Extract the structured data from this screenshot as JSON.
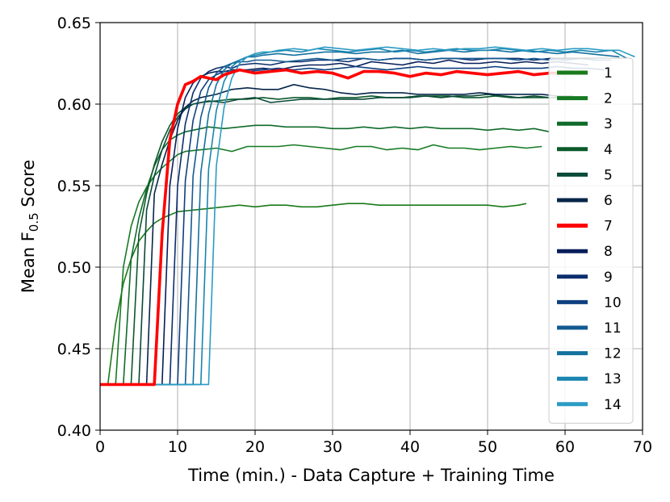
{
  "chart_data": {
    "type": "line",
    "xlabel": "Time (min.) - Data Capture + Training Time",
    "ylabel_main": "Mean F",
    "ylabel_sub": "0.5",
    "ylabel_tail": " Score",
    "xlim": [
      0,
      70
    ],
    "ylim": [
      0.4,
      0.65
    ],
    "xticks": [
      0,
      10,
      20,
      30,
      40,
      50,
      60,
      70
    ],
    "yticks": [
      0.4,
      0.45,
      0.5,
      0.55,
      0.6,
      0.65
    ],
    "xtick_labels": [
      "0",
      "10",
      "20",
      "30",
      "40",
      "50",
      "60",
      "70"
    ],
    "ytick_labels": [
      "0.40",
      "0.45",
      "0.50",
      "0.55",
      "0.60",
      "0.65"
    ],
    "grid": true,
    "legend_position": "right",
    "highlight_series": "7",
    "series": [
      {
        "name": "1",
        "color": "#1a7a1a",
        "x": [
          0,
          1,
          2,
          3,
          4,
          5,
          6,
          7,
          8,
          9,
          10,
          12,
          14,
          16,
          18,
          20,
          22,
          24,
          26,
          28,
          30,
          32,
          34,
          36,
          38,
          40,
          42,
          44,
          46,
          48,
          50,
          52,
          54,
          55
        ],
        "y": [
          0.428,
          0.428,
          0.465,
          0.49,
          0.505,
          0.516,
          0.522,
          0.527,
          0.53,
          0.532,
          0.534,
          0.535,
          0.536,
          0.537,
          0.538,
          0.537,
          0.538,
          0.538,
          0.537,
          0.537,
          0.538,
          0.539,
          0.539,
          0.538,
          0.538,
          0.538,
          0.538,
          0.538,
          0.538,
          0.538,
          0.538,
          0.537,
          0.538,
          0.539
        ]
      },
      {
        "name": "2",
        "color": "#157a23",
        "x": [
          0,
          2,
          3,
          4,
          5,
          6,
          7,
          8,
          9,
          10,
          11,
          13,
          15,
          17,
          19,
          21,
          23,
          25,
          27,
          29,
          31,
          33,
          35,
          37,
          39,
          41,
          43,
          45,
          47,
          49,
          51,
          53,
          55,
          57
        ],
        "y": [
          0.428,
          0.428,
          0.5,
          0.525,
          0.54,
          0.549,
          0.556,
          0.561,
          0.565,
          0.569,
          0.571,
          0.572,
          0.573,
          0.571,
          0.574,
          0.574,
          0.574,
          0.575,
          0.574,
          0.573,
          0.572,
          0.574,
          0.574,
          0.572,
          0.573,
          0.572,
          0.575,
          0.573,
          0.573,
          0.572,
          0.573,
          0.574,
          0.573,
          0.574
        ]
      },
      {
        "name": "3",
        "color": "#0f6b2a",
        "x": [
          0,
          3,
          4,
          5,
          6,
          7,
          8,
          9,
          10,
          11,
          12,
          14,
          16,
          18,
          20,
          22,
          24,
          26,
          28,
          30,
          32,
          34,
          36,
          38,
          40,
          42,
          44,
          46,
          48,
          50,
          52,
          54,
          56,
          58
        ],
        "y": [
          0.428,
          0.428,
          0.505,
          0.53,
          0.548,
          0.562,
          0.572,
          0.578,
          0.581,
          0.583,
          0.584,
          0.586,
          0.585,
          0.586,
          0.587,
          0.587,
          0.586,
          0.586,
          0.586,
          0.585,
          0.585,
          0.586,
          0.585,
          0.586,
          0.585,
          0.586,
          0.585,
          0.585,
          0.585,
          0.584,
          0.585,
          0.584,
          0.585,
          0.583
        ]
      },
      {
        "name": "4",
        "color": "#0b5a2a",
        "x": [
          0,
          4,
          5,
          6,
          7,
          8,
          9,
          10,
          11,
          12,
          13,
          15,
          17,
          19,
          21,
          23,
          25,
          27,
          29,
          31,
          33,
          35,
          37,
          39,
          41,
          43,
          45,
          47,
          49,
          51,
          53,
          55,
          57,
          59
        ],
        "y": [
          0.428,
          0.428,
          0.52,
          0.545,
          0.563,
          0.577,
          0.587,
          0.594,
          0.598,
          0.6,
          0.601,
          0.602,
          0.603,
          0.603,
          0.604,
          0.603,
          0.604,
          0.604,
          0.603,
          0.604,
          0.604,
          0.605,
          0.604,
          0.604,
          0.605,
          0.605,
          0.605,
          0.604,
          0.604,
          0.605,
          0.604,
          0.604,
          0.604,
          0.604
        ]
      },
      {
        "name": "5",
        "color": "#0a4a38",
        "x": [
          0,
          5,
          6,
          7,
          8,
          9,
          10,
          11,
          12,
          13,
          14,
          16,
          18,
          20,
          22,
          24,
          26,
          28,
          30,
          32,
          34,
          36,
          38,
          40,
          42,
          44,
          46,
          48,
          50,
          52,
          54,
          56,
          58,
          60
        ],
        "y": [
          0.428,
          0.428,
          0.535,
          0.556,
          0.572,
          0.584,
          0.592,
          0.597,
          0.6,
          0.601,
          0.602,
          0.601,
          0.603,
          0.604,
          0.601,
          0.602,
          0.603,
          0.603,
          0.603,
          0.603,
          0.603,
          0.604,
          0.604,
          0.604,
          0.605,
          0.604,
          0.605,
          0.605,
          0.606,
          0.605,
          0.604,
          0.605,
          0.604,
          0.604
        ]
      },
      {
        "name": "6",
        "color": "#06264a",
        "x": [
          0,
          6,
          7,
          8,
          9,
          10,
          11,
          12,
          13,
          14,
          15,
          17,
          19,
          21,
          23,
          25,
          27,
          29,
          31,
          33,
          35,
          37,
          39,
          41,
          43,
          45,
          47,
          49,
          51,
          53,
          55,
          57,
          59,
          61
        ],
        "y": [
          0.428,
          0.428,
          0.545,
          0.563,
          0.578,
          0.59,
          0.598,
          0.602,
          0.604,
          0.605,
          0.606,
          0.609,
          0.61,
          0.609,
          0.609,
          0.612,
          0.61,
          0.609,
          0.607,
          0.606,
          0.607,
          0.607,
          0.607,
          0.606,
          0.606,
          0.606,
          0.606,
          0.607,
          0.606,
          0.606,
          0.606,
          0.606,
          0.605,
          0.605
        ]
      },
      {
        "name": "7",
        "color": "#ff0000",
        "x": [
          0,
          7,
          8,
          9,
          10,
          11,
          12,
          13,
          14,
          15,
          16,
          18,
          20,
          22,
          24,
          26,
          28,
          30,
          32,
          34,
          36,
          38,
          40,
          42,
          44,
          46,
          48,
          50,
          52,
          54,
          56,
          58,
          60,
          62
        ],
        "y": [
          0.428,
          0.428,
          0.52,
          0.578,
          0.6,
          0.612,
          0.614,
          0.617,
          0.616,
          0.615,
          0.618,
          0.621,
          0.619,
          0.62,
          0.621,
          0.619,
          0.62,
          0.619,
          0.616,
          0.62,
          0.62,
          0.619,
          0.617,
          0.619,
          0.618,
          0.62,
          0.619,
          0.618,
          0.619,
          0.62,
          0.618,
          0.619,
          0.619,
          0.619
        ]
      },
      {
        "name": "8",
        "color": "#071d5a",
        "x": [
          0,
          8,
          9,
          10,
          11,
          12,
          13,
          14,
          15,
          16,
          17,
          19,
          21,
          23,
          25,
          27,
          29,
          31,
          33,
          35,
          37,
          39,
          41,
          43,
          45,
          47,
          49,
          51,
          53,
          55,
          57,
          59,
          61,
          63
        ],
        "y": [
          0.428,
          0.428,
          0.55,
          0.585,
          0.604,
          0.613,
          0.617,
          0.619,
          0.62,
          0.62,
          0.621,
          0.621,
          0.622,
          0.621,
          0.623,
          0.624,
          0.624,
          0.625,
          0.623,
          0.626,
          0.625,
          0.624,
          0.626,
          0.625,
          0.627,
          0.625,
          0.625,
          0.626,
          0.625,
          0.626,
          0.625,
          0.626,
          0.625,
          0.624
        ]
      },
      {
        "name": "9",
        "color": "#0c2d6e",
        "x": [
          0,
          9,
          10,
          11,
          12,
          13,
          14,
          15,
          16,
          17,
          18,
          20,
          22,
          24,
          26,
          28,
          30,
          32,
          34,
          36,
          38,
          40,
          42,
          44,
          46,
          48,
          50,
          52,
          54,
          56,
          58,
          60,
          62,
          64
        ],
        "y": [
          0.428,
          0.428,
          0.55,
          0.588,
          0.607,
          0.616,
          0.62,
          0.622,
          0.623,
          0.622,
          0.624,
          0.625,
          0.624,
          0.626,
          0.626,
          0.627,
          0.627,
          0.626,
          0.628,
          0.627,
          0.628,
          0.628,
          0.627,
          0.628,
          0.628,
          0.627,
          0.628,
          0.628,
          0.628,
          0.627,
          0.628,
          0.627,
          0.628,
          0.627
        ]
      },
      {
        "name": "10",
        "color": "#0f3f80",
        "x": [
          0,
          10,
          11,
          12,
          13,
          14,
          15,
          16,
          17,
          18,
          19,
          21,
          23,
          25,
          27,
          29,
          31,
          33,
          35,
          37,
          39,
          41,
          43,
          45,
          47,
          49,
          51,
          53,
          55,
          57,
          59,
          61,
          63,
          65
        ],
        "y": [
          0.428,
          0.428,
          0.553,
          0.59,
          0.608,
          0.615,
          0.618,
          0.62,
          0.62,
          0.621,
          0.62,
          0.621,
          0.622,
          0.621,
          0.622,
          0.621,
          0.622,
          0.623,
          0.622,
          0.621,
          0.622,
          0.623,
          0.622,
          0.622,
          0.622,
          0.622,
          0.623,
          0.622,
          0.622,
          0.622,
          0.623,
          0.622,
          0.622,
          0.621
        ]
      },
      {
        "name": "11",
        "color": "#125a91",
        "x": [
          0,
          11,
          12,
          13,
          14,
          15,
          16,
          17,
          18,
          19,
          20,
          22,
          24,
          26,
          28,
          30,
          32,
          34,
          36,
          38,
          40,
          42,
          44,
          46,
          48,
          50,
          52,
          54,
          56,
          58,
          60,
          62,
          64,
          66
        ],
        "y": [
          0.428,
          0.428,
          0.556,
          0.592,
          0.61,
          0.619,
          0.623,
          0.625,
          0.626,
          0.626,
          0.627,
          0.627,
          0.626,
          0.627,
          0.628,
          0.627,
          0.628,
          0.628,
          0.627,
          0.628,
          0.628,
          0.627,
          0.628,
          0.628,
          0.628,
          0.628,
          0.628,
          0.627,
          0.628,
          0.627,
          0.628,
          0.628,
          0.627,
          0.627
        ]
      },
      {
        "name": "12",
        "color": "#15719e",
        "x": [
          0,
          12,
          13,
          14,
          15,
          16,
          17,
          18,
          19,
          20,
          21,
          23,
          25,
          27,
          29,
          31,
          33,
          35,
          37,
          39,
          41,
          43,
          45,
          47,
          49,
          51,
          53,
          55,
          57,
          59,
          61,
          63,
          65,
          67
        ],
        "y": [
          0.428,
          0.428,
          0.558,
          0.594,
          0.612,
          0.621,
          0.625,
          0.627,
          0.629,
          0.629,
          0.63,
          0.631,
          0.63,
          0.631,
          0.632,
          0.632,
          0.631,
          0.632,
          0.632,
          0.633,
          0.631,
          0.632,
          0.633,
          0.632,
          0.633,
          0.633,
          0.632,
          0.633,
          0.632,
          0.631,
          0.632,
          0.631,
          0.63,
          0.629
        ]
      },
      {
        "name": "13",
        "color": "#1985b0",
        "x": [
          0,
          13,
          14,
          15,
          16,
          17,
          18,
          19,
          20,
          21,
          22,
          24,
          26,
          28,
          30,
          32,
          34,
          36,
          38,
          40,
          42,
          44,
          46,
          48,
          50,
          52,
          54,
          56,
          58,
          60,
          62,
          64,
          66,
          68
        ],
        "y": [
          0.428,
          0.428,
          0.56,
          0.596,
          0.614,
          0.623,
          0.627,
          0.629,
          0.63,
          0.631,
          0.632,
          0.633,
          0.632,
          0.634,
          0.633,
          0.632,
          0.633,
          0.634,
          0.632,
          0.633,
          0.632,
          0.633,
          0.634,
          0.633,
          0.633,
          0.634,
          0.633,
          0.632,
          0.633,
          0.632,
          0.633,
          0.632,
          0.633,
          0.628
        ]
      },
      {
        "name": "14",
        "color": "#2b9bc4",
        "x": [
          0,
          14,
          15,
          16,
          17,
          18,
          19,
          20,
          21,
          22,
          23,
          25,
          27,
          29,
          31,
          33,
          35,
          37,
          39,
          41,
          43,
          45,
          47,
          49,
          51,
          53,
          55,
          57,
          59,
          61,
          63,
          65,
          67,
          69
        ],
        "y": [
          0.428,
          0.428,
          0.562,
          0.598,
          0.616,
          0.625,
          0.629,
          0.631,
          0.632,
          0.632,
          0.633,
          0.634,
          0.633,
          0.635,
          0.634,
          0.633,
          0.634,
          0.635,
          0.634,
          0.633,
          0.634,
          0.633,
          0.634,
          0.634,
          0.635,
          0.634,
          0.633,
          0.634,
          0.633,
          0.634,
          0.634,
          0.633,
          0.633,
          0.629
        ]
      }
    ]
  }
}
